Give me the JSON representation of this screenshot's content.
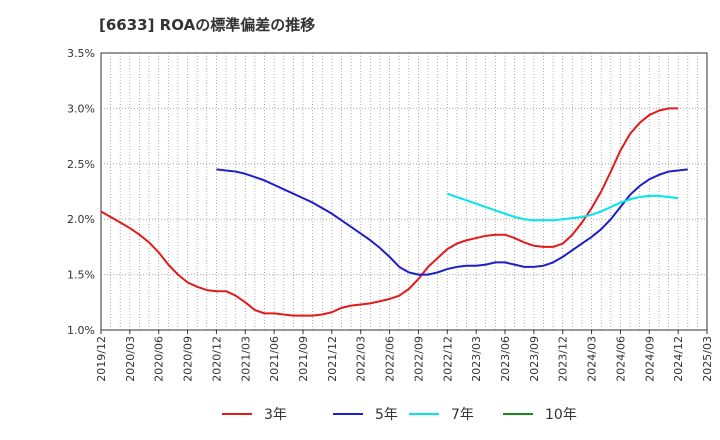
{
  "title": "[6633]  ROAの標準偏差の推移",
  "chart_data": {
    "type": "line",
    "title": "[6633]  ROAの標準偏差の推移",
    "xlabel": "",
    "ylabel": "",
    "ylim": [
      1.0,
      3.5
    ],
    "y_ticks": [
      "1.0%",
      "1.5%",
      "2.0%",
      "2.5%",
      "3.0%",
      "3.5%"
    ],
    "y_tick_values": [
      1.0,
      1.5,
      2.0,
      2.5,
      3.0,
      3.5
    ],
    "x_ticks": [
      "2019/12",
      "2020/03",
      "2020/06",
      "2020/09",
      "2020/12",
      "2021/03",
      "2021/06",
      "2021/09",
      "2021/12",
      "2022/03",
      "2022/06",
      "2022/09",
      "2022/12",
      "2023/03",
      "2023/06",
      "2023/09",
      "2023/12",
      "2024/03",
      "2024/06",
      "2024/09",
      "2024/12",
      "2025/03"
    ],
    "grid": true,
    "legend_position": "bottom",
    "series": [
      {
        "name": "3年",
        "color": "#e31a1c",
        "points": [
          [
            "2019/12",
            2.07
          ],
          [
            "2020/01",
            2.02
          ],
          [
            "2020/02",
            1.97
          ],
          [
            "2020/03",
            1.92
          ],
          [
            "2020/04",
            1.86
          ],
          [
            "2020/05",
            1.79
          ],
          [
            "2020/06",
            1.7
          ],
          [
            "2020/07",
            1.59
          ],
          [
            "2020/08",
            1.5
          ],
          [
            "2020/09",
            1.43
          ],
          [
            "2020/10",
            1.39
          ],
          [
            "2020/11",
            1.36
          ],
          [
            "2020/12",
            1.35
          ],
          [
            "2021/01",
            1.35
          ],
          [
            "2021/02",
            1.31
          ],
          [
            "2021/03",
            1.25
          ],
          [
            "2021/04",
            1.18
          ],
          [
            "2021/05",
            1.15
          ],
          [
            "2021/06",
            1.15
          ],
          [
            "2021/07",
            1.14
          ],
          [
            "2021/08",
            1.13
          ],
          [
            "2021/09",
            1.13
          ],
          [
            "2021/10",
            1.13
          ],
          [
            "2021/11",
            1.14
          ],
          [
            "2021/12",
            1.16
          ],
          [
            "2022/01",
            1.2
          ],
          [
            "2022/02",
            1.22
          ],
          [
            "2022/03",
            1.23
          ],
          [
            "2022/04",
            1.24
          ],
          [
            "2022/05",
            1.26
          ],
          [
            "2022/06",
            1.28
          ],
          [
            "2022/07",
            1.31
          ],
          [
            "2022/08",
            1.37
          ],
          [
            "2022/09",
            1.46
          ],
          [
            "2022/10",
            1.57
          ],
          [
            "2022/11",
            1.65
          ],
          [
            "2022/12",
            1.73
          ],
          [
            "2023/01",
            1.78
          ],
          [
            "2023/02",
            1.81
          ],
          [
            "2023/03",
            1.83
          ],
          [
            "2023/04",
            1.85
          ],
          [
            "2023/05",
            1.86
          ],
          [
            "2023/06",
            1.86
          ],
          [
            "2023/07",
            1.83
          ],
          [
            "2023/08",
            1.79
          ],
          [
            "2023/09",
            1.76
          ],
          [
            "2023/10",
            1.75
          ],
          [
            "2023/11",
            1.75
          ],
          [
            "2023/12",
            1.78
          ],
          [
            "2024/01",
            1.86
          ],
          [
            "2024/02",
            1.97
          ],
          [
            "2024/03",
            2.1
          ],
          [
            "2024/04",
            2.25
          ],
          [
            "2024/05",
            2.43
          ],
          [
            "2024/06",
            2.62
          ],
          [
            "2024/07",
            2.77
          ],
          [
            "2024/08",
            2.87
          ],
          [
            "2024/09",
            2.94
          ],
          [
            "2024/10",
            2.98
          ],
          [
            "2024/11",
            3.0
          ],
          [
            "2024/12",
            3.0
          ]
        ]
      },
      {
        "name": "5年",
        "color": "#1f1fc8",
        "points": [
          [
            "2020/12",
            2.45
          ],
          [
            "2021/01",
            2.44
          ],
          [
            "2021/02",
            2.43
          ],
          [
            "2021/03",
            2.41
          ],
          [
            "2021/04",
            2.38
          ],
          [
            "2021/05",
            2.35
          ],
          [
            "2021/06",
            2.31
          ],
          [
            "2021/07",
            2.27
          ],
          [
            "2021/08",
            2.23
          ],
          [
            "2021/09",
            2.19
          ],
          [
            "2021/10",
            2.15
          ],
          [
            "2021/11",
            2.1
          ],
          [
            "2021/12",
            2.05
          ],
          [
            "2022/01",
            1.99
          ],
          [
            "2022/02",
            1.93
          ],
          [
            "2022/03",
            1.87
          ],
          [
            "2022/04",
            1.81
          ],
          [
            "2022/05",
            1.74
          ],
          [
            "2022/06",
            1.66
          ],
          [
            "2022/07",
            1.57
          ],
          [
            "2022/08",
            1.52
          ],
          [
            "2022/09",
            1.5
          ],
          [
            "2022/10",
            1.5
          ],
          [
            "2022/11",
            1.52
          ],
          [
            "2022/12",
            1.55
          ],
          [
            "2023/01",
            1.57
          ],
          [
            "2023/02",
            1.58
          ],
          [
            "2023/03",
            1.58
          ],
          [
            "2023/04",
            1.59
          ],
          [
            "2023/05",
            1.61
          ],
          [
            "2023/06",
            1.61
          ],
          [
            "2023/07",
            1.59
          ],
          [
            "2023/08",
            1.57
          ],
          [
            "2023/09",
            1.57
          ],
          [
            "2023/10",
            1.58
          ],
          [
            "2023/11",
            1.61
          ],
          [
            "2023/12",
            1.66
          ],
          [
            "2024/01",
            1.72
          ],
          [
            "2024/02",
            1.78
          ],
          [
            "2024/03",
            1.84
          ],
          [
            "2024/04",
            1.91
          ],
          [
            "2024/05",
            2.0
          ],
          [
            "2024/06",
            2.11
          ],
          [
            "2024/07",
            2.22
          ],
          [
            "2024/08",
            2.3
          ],
          [
            "2024/09",
            2.36
          ],
          [
            "2024/10",
            2.4
          ],
          [
            "2024/11",
            2.43
          ],
          [
            "2024/12",
            2.44
          ],
          [
            "2025/01",
            2.45
          ]
        ]
      },
      {
        "name": "7年",
        "color": "#00e5ee",
        "points": [
          [
            "2022/12",
            2.23
          ],
          [
            "2023/01",
            2.2
          ],
          [
            "2023/02",
            2.17
          ],
          [
            "2023/03",
            2.14
          ],
          [
            "2023/04",
            2.11
          ],
          [
            "2023/05",
            2.08
          ],
          [
            "2023/06",
            2.05
          ],
          [
            "2023/07",
            2.02
          ],
          [
            "2023/08",
            2.0
          ],
          [
            "2023/09",
            1.99
          ],
          [
            "2023/10",
            1.99
          ],
          [
            "2023/11",
            1.99
          ],
          [
            "2023/12",
            2.0
          ],
          [
            "2024/01",
            2.01
          ],
          [
            "2024/02",
            2.02
          ],
          [
            "2024/03",
            2.04
          ],
          [
            "2024/04",
            2.07
          ],
          [
            "2024/05",
            2.11
          ],
          [
            "2024/06",
            2.15
          ],
          [
            "2024/07",
            2.18
          ],
          [
            "2024/08",
            2.2
          ],
          [
            "2024/09",
            2.21
          ],
          [
            "2024/10",
            2.21
          ],
          [
            "2024/11",
            2.2
          ],
          [
            "2024/12",
            2.19
          ]
        ]
      },
      {
        "name": "10年",
        "color": "#1a8a1a",
        "points": []
      }
    ]
  }
}
